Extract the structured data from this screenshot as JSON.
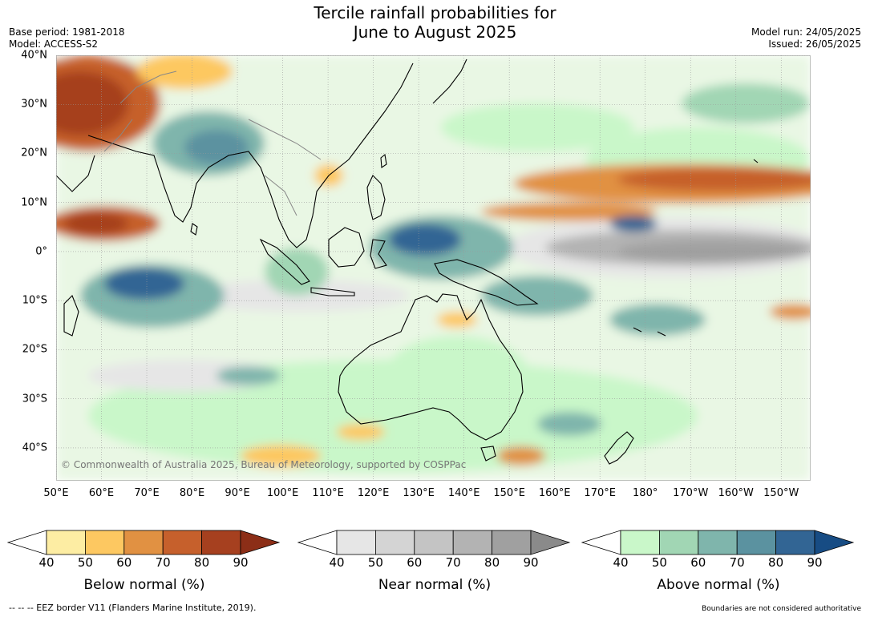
{
  "header": {
    "title_line1": "Tercile rainfall probabilities for",
    "title_line2": "June to August 2025",
    "base_period": "Base period: 1981-2018",
    "model": "Model: ACCESS-S2",
    "model_run": "Model run: 24/05/2025",
    "issued": "Issued: 26/05/2025"
  },
  "map": {
    "lat_labels": [
      "40°N",
      "30°N",
      "20°N",
      "10°N",
      "0°",
      "10°S",
      "20°S",
      "30°S",
      "40°S"
    ],
    "lon_labels": [
      "50°E",
      "60°E",
      "70°E",
      "80°E",
      "90°E",
      "100°E",
      "110°E",
      "120°E",
      "130°E",
      "140°E",
      "150°E",
      "160°E",
      "170°E",
      "180°",
      "170°W",
      "160°W",
      "150°W"
    ],
    "copyright": "© Commonwealth of Australia 2025, Bureau of Meteorology, supported by COSPPac"
  },
  "legends": [
    {
      "name": "below",
      "title": "Below normal (%)",
      "ticks": [
        "40",
        "50",
        "60",
        "70",
        "80",
        "90"
      ],
      "colors": [
        "#ffffff",
        "#fdeda3",
        "#fdc861",
        "#e19142",
        "#c6602c",
        "#a6401f",
        "#8c2e17"
      ]
    },
    {
      "name": "near",
      "title": "Near normal (%)",
      "ticks": [
        "40",
        "50",
        "60",
        "70",
        "80",
        "90"
      ],
      "colors": [
        "#ffffff",
        "#e6e6e6",
        "#d4d4d4",
        "#c4c4c4",
        "#b3b3b3",
        "#a0a0a0",
        "#8a8a8a"
      ]
    },
    {
      "name": "above",
      "title": "Above normal (%)",
      "ticks": [
        "40",
        "50",
        "60",
        "70",
        "80",
        "90"
      ],
      "colors": [
        "#ffffff",
        "#c9f7c9",
        "#a1d6b4",
        "#7fb5ac",
        "#5b92a0",
        "#326594",
        "#174c84"
      ]
    }
  ],
  "footer": {
    "eez": "--  --  -- EEZ border V11 (Flanders Marine Institute, 2019).",
    "disclaimer": "Boundaries are not considered authoritative"
  }
}
